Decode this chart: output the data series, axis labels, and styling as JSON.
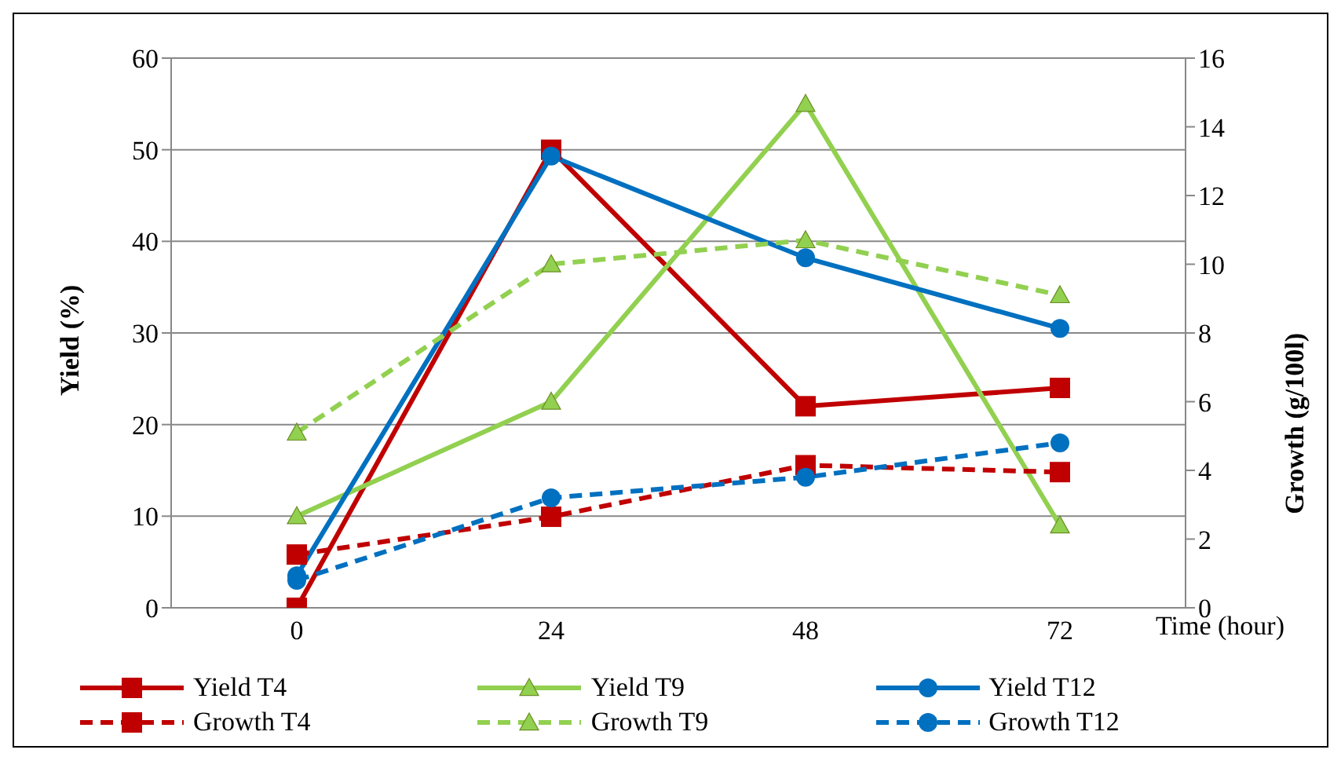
{
  "chart_data": {
    "type": "line",
    "xlabel": "Time (hour)",
    "ylabel": "Yield (%)",
    "y2label": "Growth (g/100l)",
    "categories": [
      "0",
      "24",
      "48",
      "72"
    ],
    "ylim": [
      0,
      60
    ],
    "yticks": [
      0,
      10,
      20,
      30,
      40,
      50,
      60
    ],
    "y2lim": [
      0,
      16
    ],
    "y2ticks": [
      0,
      2,
      4,
      6,
      8,
      10,
      12,
      14,
      16
    ],
    "grid": "y",
    "legend": "bottom",
    "series": [
      {
        "name": "Yield T4",
        "color": "#c00000",
        "values": [
          0,
          50,
          22,
          24
        ],
        "marker": "square",
        "line_style": "solid"
      },
      {
        "name": "Yield T9",
        "color": "#92d050",
        "values": [
          10,
          22.5,
          55,
          9
        ],
        "marker": "triangle",
        "line_style": "solid"
      },
      {
        "name": "Yield T12",
        "color": "#0070c0",
        "values": [
          3.5,
          49.3,
          38.2,
          30.5
        ],
        "marker": "circle",
        "line_style": "solid"
      },
      {
        "name": "Growth T4",
        "color": "#c00000",
        "values": [
          1.55,
          2.65,
          4.15,
          3.95
        ],
        "marker": "square",
        "line_style": "dashed",
        "axis": "y2"
      },
      {
        "name": "Growth T9",
        "color": "#92d050",
        "values": [
          5.1,
          10,
          10.7,
          9.1
        ],
        "marker": "triangle",
        "line_style": "dashed",
        "axis": "y2"
      },
      {
        "name": "Growth T12",
        "color": "#0070c0",
        "values": [
          0.8,
          3.2,
          3.8,
          4.8
        ],
        "marker": "circle",
        "line_style": "dashed",
        "axis": "y2"
      }
    ]
  }
}
